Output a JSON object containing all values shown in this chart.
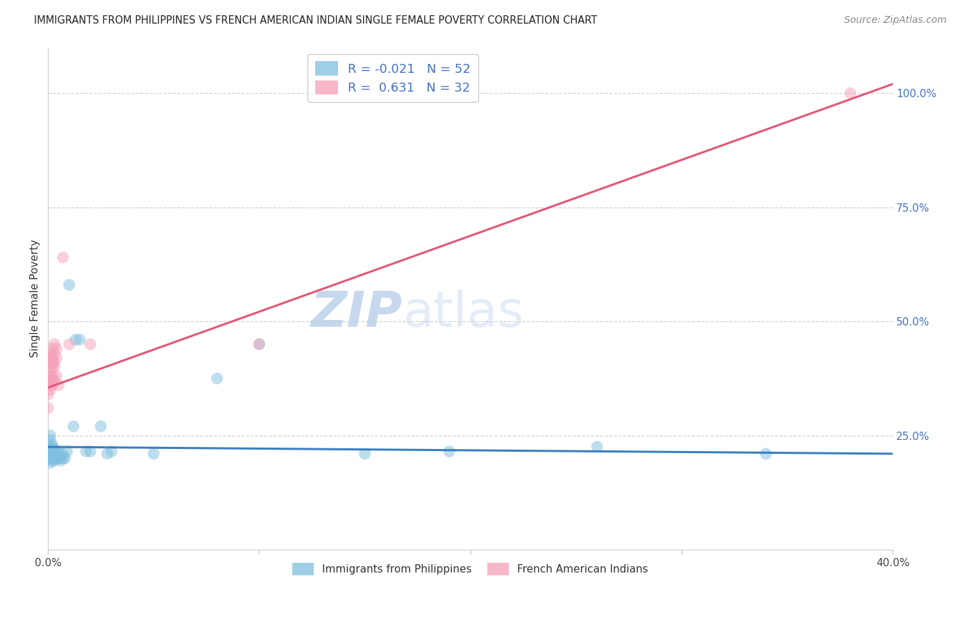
{
  "title": "IMMIGRANTS FROM PHILIPPINES VS FRENCH AMERICAN INDIAN SINGLE FEMALE POVERTY CORRELATION CHART",
  "source": "Source: ZipAtlas.com",
  "ylabel": "Single Female Poverty",
  "right_yticks": [
    "25.0%",
    "50.0%",
    "75.0%",
    "100.0%"
  ],
  "right_ytick_vals": [
    0.25,
    0.5,
    0.75,
    1.0
  ],
  "legend_label1": "Immigrants from Philippines",
  "legend_label2": "French American Indians",
  "blue_color": "#7fbfdf",
  "pink_color": "#f4a0b8",
  "blue_line_color": "#3a7ebf",
  "pink_line_color": "#e05878",
  "blue_scatter_x": [
    0.0,
    0.0,
    0.001,
    0.001,
    0.001,
    0.001,
    0.001,
    0.001,
    0.001,
    0.001,
    0.001,
    0.002,
    0.002,
    0.002,
    0.002,
    0.002,
    0.002,
    0.002,
    0.002,
    0.003,
    0.003,
    0.003,
    0.003,
    0.003,
    0.003,
    0.004,
    0.004,
    0.004,
    0.004,
    0.005,
    0.005,
    0.006,
    0.007,
    0.007,
    0.008,
    0.009,
    0.01,
    0.012,
    0.013,
    0.015,
    0.018,
    0.02,
    0.025,
    0.028,
    0.03,
    0.05,
    0.08,
    0.1,
    0.15,
    0.19,
    0.26,
    0.34
  ],
  "blue_scatter_y": [
    0.22,
    0.23,
    0.21,
    0.22,
    0.24,
    0.2,
    0.21,
    0.22,
    0.25,
    0.19,
    0.215,
    0.2,
    0.21,
    0.22,
    0.23,
    0.195,
    0.205,
    0.215,
    0.225,
    0.2,
    0.21,
    0.215,
    0.22,
    0.205,
    0.195,
    0.2,
    0.205,
    0.215,
    0.21,
    0.2,
    0.215,
    0.195,
    0.2,
    0.21,
    0.2,
    0.215,
    0.58,
    0.27,
    0.46,
    0.46,
    0.215,
    0.215,
    0.27,
    0.21,
    0.215,
    0.21,
    0.375,
    0.45,
    0.21,
    0.215,
    0.225,
    0.21
  ],
  "pink_scatter_x": [
    0.0,
    0.0,
    0.0,
    0.001,
    0.001,
    0.001,
    0.001,
    0.001,
    0.001,
    0.001,
    0.001,
    0.002,
    0.002,
    0.002,
    0.002,
    0.002,
    0.002,
    0.002,
    0.003,
    0.003,
    0.003,
    0.003,
    0.003,
    0.004,
    0.004,
    0.004,
    0.005,
    0.007,
    0.01,
    0.02,
    0.1,
    0.38
  ],
  "pink_scatter_y": [
    0.34,
    0.37,
    0.31,
    0.42,
    0.39,
    0.35,
    0.37,
    0.41,
    0.43,
    0.36,
    0.38,
    0.44,
    0.4,
    0.37,
    0.41,
    0.38,
    0.42,
    0.36,
    0.43,
    0.4,
    0.45,
    0.37,
    0.41,
    0.42,
    0.38,
    0.44,
    0.36,
    0.64,
    0.45,
    0.45,
    0.45,
    1.0
  ],
  "xlim": [
    0.0,
    0.4
  ],
  "ylim": [
    0.0,
    1.1
  ],
  "watermark_zip": "ZIP",
  "watermark_atlas": "atlas",
  "blue_R": -0.021,
  "pink_R": 0.631,
  "blue_N": 52,
  "pink_N": 32,
  "pink_line_x0": 0.0,
  "pink_line_y0": 0.355,
  "pink_line_x1": 0.4,
  "pink_line_y1": 1.02,
  "blue_line_x0": 0.0,
  "blue_line_y0": 0.225,
  "blue_line_x1": 0.4,
  "blue_line_y1": 0.21
}
